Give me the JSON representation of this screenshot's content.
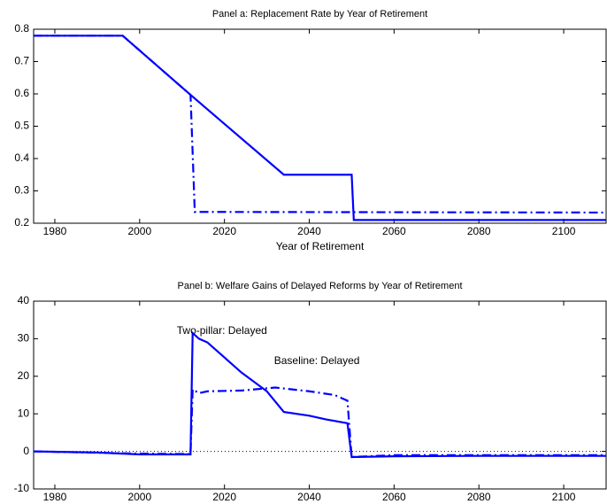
{
  "chart_data": [
    {
      "type": "line",
      "title": "Panel a: Replacement Rate by Year of Retirement",
      "x_label": "Year of Retirement",
      "xlim": [
        1975,
        2110
      ],
      "xticks": [
        1980,
        2000,
        2020,
        2040,
        2060,
        2080,
        2100
      ],
      "ylim": [
        0.2,
        0.8
      ],
      "yticks": [
        0.2,
        0.3,
        0.4,
        0.5,
        0.6,
        0.7,
        0.8
      ],
      "series": [
        {
          "color": "#0000ff",
          "linestyle": "solid",
          "x": [
            1975,
            1996,
            2012,
            2034,
            2050,
            2050.5,
            2110
          ],
          "values": [
            0.78,
            0.78,
            0.597,
            0.35,
            0.35,
            0.21,
            0.21
          ]
        },
        {
          "color": "#0000ff",
          "linestyle": "dashdot",
          "x": [
            1975,
            1996,
            2012,
            2013,
            2110
          ],
          "values": [
            0.78,
            0.78,
            0.597,
            0.235,
            0.233
          ]
        }
      ]
    },
    {
      "type": "line",
      "title": "Panel b: Welfare Gains of Delayed Reforms by Year of Retirement",
      "xlim": [
        1975,
        2110
      ],
      "xticks": [
        1980,
        2000,
        2020,
        2040,
        2060,
        2080,
        2100
      ],
      "ylim": [
        -10,
        40
      ],
      "yticks": [
        -10,
        0,
        10,
        20,
        30,
        40
      ],
      "zero_line": true,
      "annotations": [
        "Two-pillar: Delayed",
        "Baseline: Delayed"
      ],
      "series": [
        {
          "color": "#0000ff",
          "linestyle": "solid",
          "x": [
            1975,
            1990,
            2000,
            2012,
            2012.5,
            2014,
            2016,
            2020,
            2024,
            2030,
            2034,
            2040,
            2044,
            2049,
            2050,
            2060,
            2080,
            2110
          ],
          "values": [
            0,
            -0.3,
            -0.8,
            -0.8,
            31.5,
            30,
            29,
            25,
            21,
            16,
            10.5,
            9.5,
            8.5,
            7.5,
            -1.5,
            -1.3,
            -1.2,
            -1.2
          ]
        },
        {
          "color": "#0000ff",
          "linestyle": "dashdot",
          "x": [
            1975,
            2000,
            2012,
            2012.5,
            2014,
            2016,
            2024,
            2032,
            2040,
            2046,
            2049,
            2050,
            2060,
            2110
          ],
          "values": [
            0,
            -0.6,
            -0.7,
            16.5,
            15.5,
            16,
            16.2,
            17,
            16,
            15,
            13.5,
            -1.5,
            -1,
            -1
          ]
        }
      ]
    }
  ]
}
